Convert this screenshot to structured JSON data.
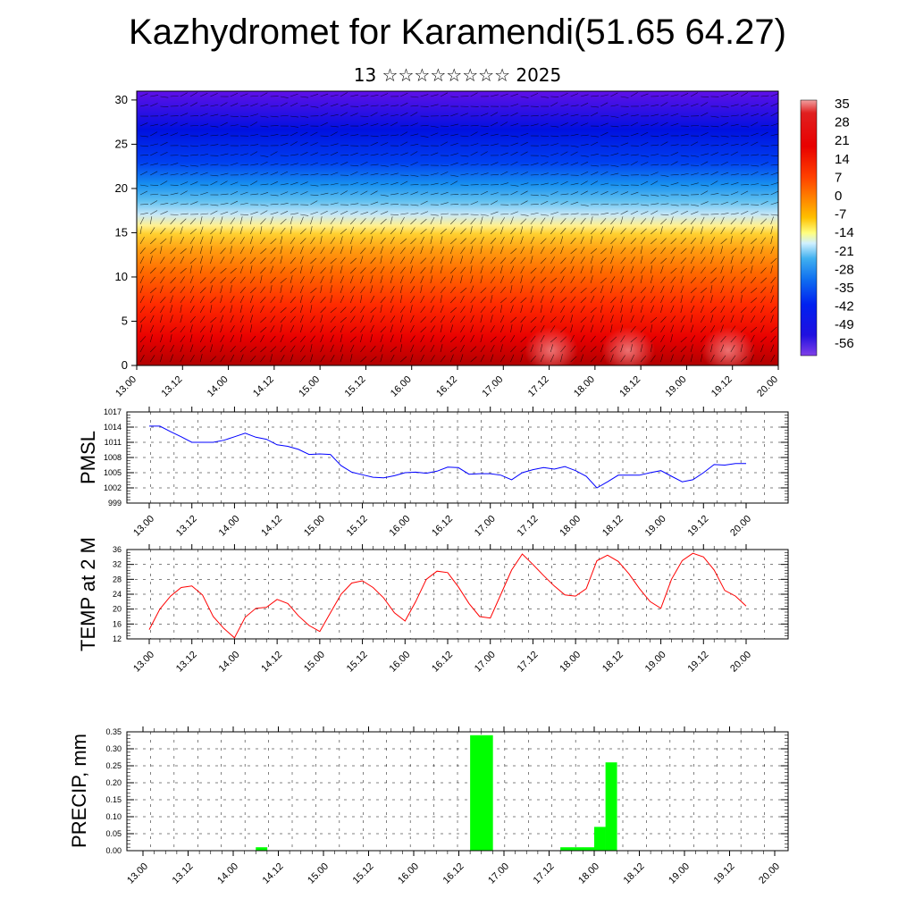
{
  "header": {
    "title": "Kazhydromet for Karamendi(51.65 64.27)",
    "date": "13 ☆☆☆☆☆☆☆☆ 2025"
  },
  "colors": {
    "pmsl_line": "#0000ff",
    "temp_line": "#ff0000",
    "precip_bar": "#00ff00",
    "grid": "#000000"
  },
  "chart_data": [
    {
      "type": "heatmap",
      "name": "vertical-section",
      "xlabel": "",
      "ylabel": "",
      "x_ticks": [
        "13.00",
        "13.12",
        "14.00",
        "14.12",
        "15.00",
        "15.12",
        "16.00",
        "16.12",
        "17.00",
        "17.12",
        "18.00",
        "18.12",
        "19.00",
        "19.12",
        "20.00"
      ],
      "y_ticks": [
        0,
        5,
        10,
        15,
        20,
        25,
        30
      ],
      "ylim": [
        0,
        31
      ],
      "colorbar_labels": [
        35,
        28,
        21,
        14,
        7,
        0,
        -7,
        -14,
        -21,
        -28,
        -35,
        -42,
        -49,
        -56
      ],
      "overlay": "wind barbs"
    },
    {
      "type": "line",
      "name": "pmsl",
      "ylabel": "PMSL",
      "ylim": [
        999,
        1017
      ],
      "y_ticks": [
        999,
        1002,
        1005,
        1008,
        1011,
        1014,
        1017
      ],
      "x_ticks": [
        "13.00",
        "13.12",
        "14.00",
        "14.12",
        "15.00",
        "15.12",
        "16.00",
        "16.12",
        "17.00",
        "17.12",
        "18.00",
        "18.12",
        "19.00",
        "19.12",
        "20.00"
      ],
      "x": [
        0,
        3,
        6,
        9,
        12,
        15,
        18,
        21,
        24,
        27,
        30,
        33,
        36,
        39,
        42,
        45,
        48,
        51,
        54,
        57,
        60,
        63,
        66,
        69,
        72,
        75,
        78,
        81,
        84,
        87,
        90,
        93,
        96,
        99,
        102,
        105,
        108,
        111,
        114,
        117,
        120,
        123,
        126,
        129,
        132,
        135,
        138,
        141,
        144,
        147,
        150,
        153,
        156,
        159,
        162,
        165,
        168
      ],
      "values": [
        1014.2,
        1014.2,
        1013.1,
        1012.1,
        1011.0,
        1011.0,
        1011.0,
        1011.4,
        1012.1,
        1012.8,
        1012.0,
        1011.6,
        1010.5,
        1010.2,
        1009.6,
        1008.6,
        1008.7,
        1008.6,
        1006.4,
        1005.1,
        1004.6,
        1004.1,
        1004.0,
        1004.4,
        1005.0,
        1005.1,
        1004.9,
        1005.3,
        1006.1,
        1006.0,
        1004.7,
        1004.8,
        1004.8,
        1004.5,
        1003.6,
        1005.0,
        1005.6,
        1006.0,
        1005.7,
        1006.2,
        1005.4,
        1004.3,
        1002.0,
        1003.2,
        1004.5,
        1004.5,
        1004.5,
        1005.0,
        1005.4,
        1004.3,
        1003.2,
        1003.6,
        1005.0,
        1006.6,
        1006.5,
        1006.8,
        1006.8
      ]
    },
    {
      "type": "line",
      "name": "temp2m",
      "ylabel": "TEMP at 2 M",
      "ylim": [
        12,
        36
      ],
      "y_ticks": [
        12,
        16,
        20,
        24,
        28,
        32,
        36
      ],
      "x_ticks": [
        "13.00",
        "13.12",
        "14.00",
        "14.12",
        "15.00",
        "15.12",
        "16.00",
        "16.12",
        "17.00",
        "17.12",
        "18.00",
        "18.12",
        "19.00",
        "19.12",
        "20.00"
      ],
      "x": [
        0,
        3,
        6,
        9,
        12,
        15,
        18,
        21,
        24,
        27,
        30,
        33,
        36,
        39,
        42,
        45,
        48,
        51,
        54,
        57,
        60,
        63,
        66,
        69,
        72,
        75,
        78,
        81,
        84,
        87,
        90,
        93,
        96,
        99,
        102,
        105,
        108,
        111,
        114,
        117,
        120,
        123,
        126,
        129,
        132,
        135,
        138,
        141,
        144,
        147,
        150,
        153,
        156,
        159,
        162,
        165,
        168
      ],
      "values": [
        14.5,
        20.0,
        23.5,
        25.8,
        26.2,
        23.8,
        18.0,
        14.8,
        12.3,
        17.8,
        20.2,
        20.5,
        22.6,
        21.5,
        18.2,
        15.6,
        14.0,
        19.0,
        24.0,
        27.0,
        27.6,
        25.8,
        23.0,
        19.0,
        16.8,
        22.0,
        28.0,
        30.2,
        29.8,
        26.0,
        21.5,
        18.0,
        17.6,
        24.0,
        30.5,
        34.8,
        32.0,
        29.0,
        26.2,
        23.8,
        23.5,
        25.5,
        33.0,
        34.5,
        32.8,
        29.5,
        25.5,
        22.0,
        20.2,
        28.0,
        33.0,
        35.0,
        34.0,
        30.5,
        25.0,
        23.5,
        20.8
      ]
    },
    {
      "type": "bar",
      "name": "precip",
      "ylabel": "PRECIP, mm",
      "ylim": [
        0,
        0.35
      ],
      "y_ticks": [
        "0.00",
        "0.05",
        "0.10",
        "0.15",
        "0.20",
        "0.25",
        "0.30",
        "0.35"
      ],
      "x_ticks": [
        "13.00",
        "13.12",
        "14.00",
        "14.12",
        "15.00",
        "15.12",
        "16.00",
        "16.12",
        "17.00",
        "17.12",
        "18.00",
        "18.12",
        "19.00",
        "19.12",
        "20.00"
      ],
      "x": [
        30,
        87,
        90,
        111,
        114,
        117,
        120,
        123
      ],
      "values": [
        0.01,
        0.34,
        0.34,
        0.01,
        0.01,
        0.01,
        0.07,
        0.26
      ]
    }
  ]
}
